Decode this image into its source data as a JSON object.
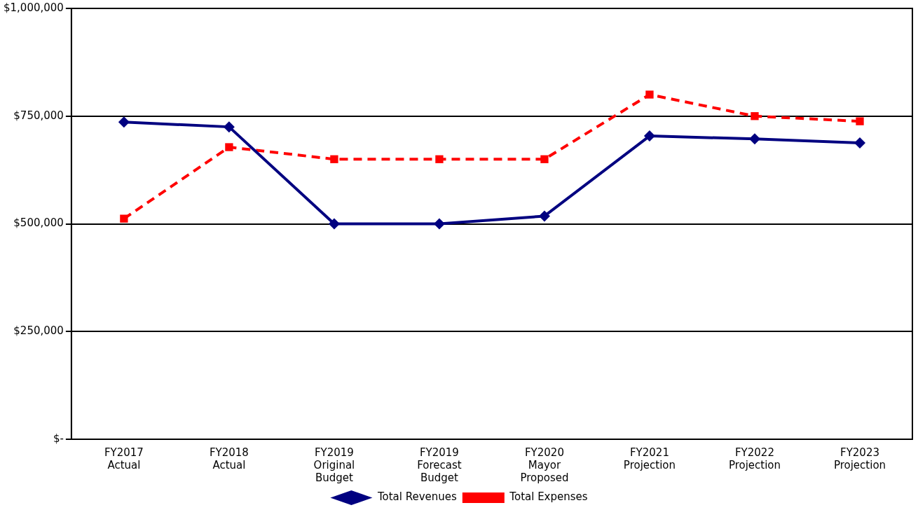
{
  "chart_data": {
    "type": "line",
    "categories": [
      "FY2017\nActual",
      "FY2018\nActual",
      "FY2019\nOriginal\nBudget",
      "FY2019\nForecast\nBudget",
      "FY2020\nMayor\nProposed",
      "FY2021\nProjection",
      "FY2022\nProjection",
      "FY2023\nProjection"
    ],
    "series": [
      {
        "name": "Total Revenues",
        "color": "#000080",
        "marker": "diamond",
        "line_style": "solid",
        "values": [
          736000,
          725000,
          500000,
          500000,
          518000,
          704000,
          697000,
          688000
        ]
      },
      {
        "name": "Total Expenses",
        "color": "#ff0000",
        "marker": "square",
        "line_style": "dashed",
        "values": [
          512000,
          678000,
          650000,
          650000,
          650000,
          800000,
          750000,
          738000
        ]
      }
    ],
    "ylim": [
      0,
      1000000
    ],
    "yticks": [
      {
        "value": 0,
        "label": "$-"
      },
      {
        "value": 250000,
        "label": "$250,000"
      },
      {
        "value": 500000,
        "label": "$500,000"
      },
      {
        "value": 750000,
        "label": "$750,000"
      },
      {
        "value": 1000000,
        "label": "$1,000,000"
      }
    ],
    "grid": "y",
    "legend": "bottom"
  }
}
